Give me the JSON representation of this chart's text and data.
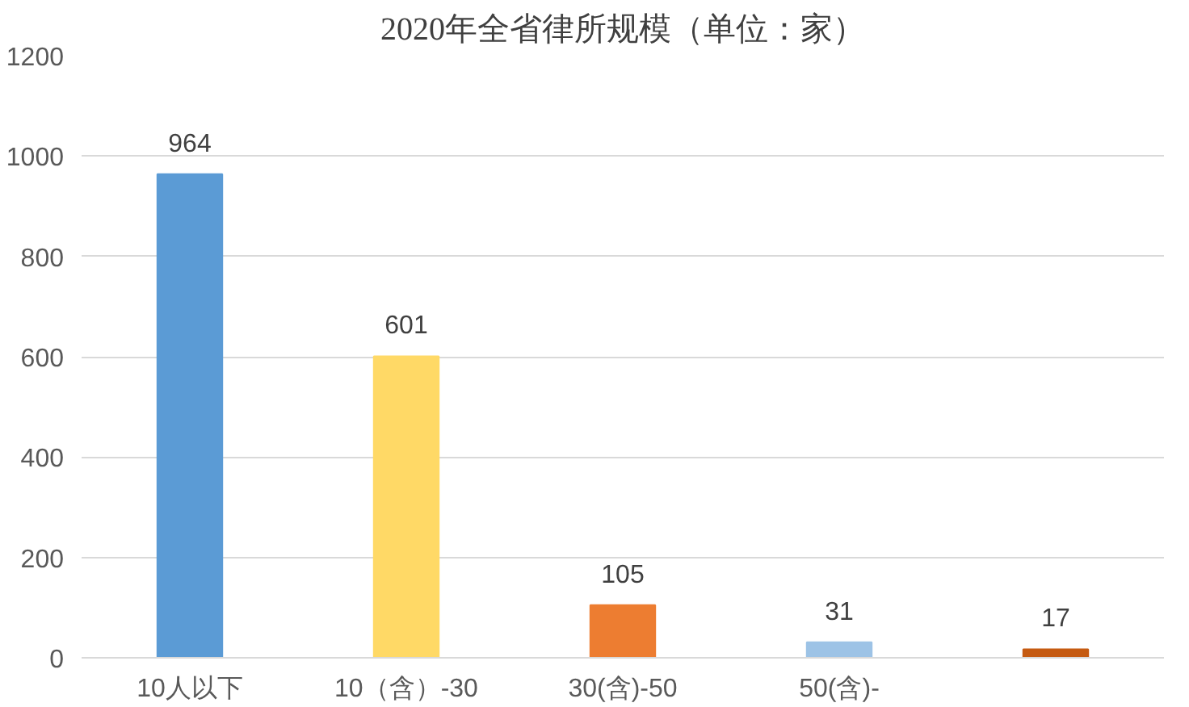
{
  "chart_data": {
    "type": "bar",
    "title": "2020年全省律所规模（单位：家）",
    "categories": [
      "10人以下",
      "10（含）-30",
      "30(含)-50",
      "50(含)-",
      null
    ],
    "values": [
      964,
      601,
      105,
      31,
      17
    ],
    "colors": [
      "#5b9bd5",
      "#ffd966",
      "#ed7d31",
      "#9dc3e6",
      "#c55a11"
    ],
    "ylim": [
      0,
      1200
    ],
    "yticks": [
      0,
      200,
      400,
      600,
      800,
      1000,
      1200
    ],
    "grid": "y",
    "data_labels": true
  }
}
